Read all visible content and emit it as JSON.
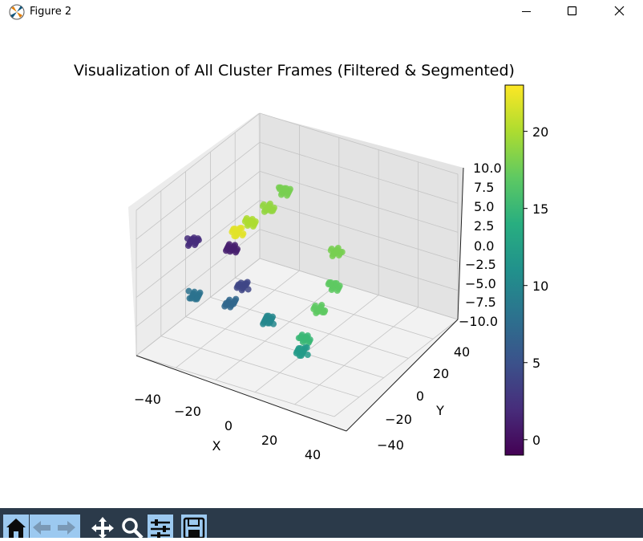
{
  "window": {
    "title": "Figure 2",
    "controls": [
      "minimize",
      "maximize",
      "close"
    ]
  },
  "toolbar": {
    "buttons": [
      "home-icon",
      "back-icon",
      "forward-icon",
      "pan-icon",
      "zoom-icon",
      "configure-subplots-icon",
      "save-icon"
    ],
    "accent": "#9cc9f0",
    "background": "#2b3a4a"
  },
  "chart_data": {
    "type": "scatter",
    "projection": "3d",
    "title": "Visualization of All Cluster Frames (Filtered & Segmented)",
    "xlabel": "X",
    "ylabel": "Y",
    "zlabel": "",
    "x_ticks": [
      "−40",
      "−20",
      "0",
      "20",
      "40"
    ],
    "y_ticks": [
      "−40",
      "−20",
      "0",
      "20",
      "40"
    ],
    "z_ticks": [
      "10.0",
      "7.5",
      "5.0",
      "2.5",
      "0.0",
      "−2.5",
      "−5.0",
      "−7.5",
      "−10.0"
    ],
    "xlim": [
      -50,
      50
    ],
    "ylim": [
      -50,
      50
    ],
    "zlim": [
      -10,
      10
    ],
    "grid": true,
    "colormap": "viridis",
    "colorbar": {
      "ticks": [
        "20",
        "15",
        "10",
        "5",
        "0"
      ],
      "range": [
        -1,
        23
      ]
    },
    "clusters": [
      {
        "x": -38,
        "y": 30,
        "z": 2.5,
        "c": 18
      },
      {
        "x": -25,
        "y": 30,
        "z": 2,
        "c": 19
      },
      {
        "x": -10,
        "y": 30,
        "z": 2,
        "c": 20
      },
      {
        "x": 0,
        "y": 30,
        "z": 2,
        "c": 22
      },
      {
        "x": 8,
        "y": 28,
        "z": 1,
        "c": 1
      },
      {
        "x": 12,
        "y": 20,
        "z": -3,
        "c": 4
      },
      {
        "x": 15,
        "y": 5,
        "z": -6,
        "c": 10
      },
      {
        "x": 22,
        "y": 20,
        "z": -4,
        "c": 7
      },
      {
        "x": 28,
        "y": 35,
        "z": 4,
        "c": 2
      },
      {
        "x": 35,
        "y": 30,
        "z": -2,
        "c": 8
      },
      {
        "x": -40,
        "y": 5,
        "z": -4,
        "c": 18
      },
      {
        "x": -30,
        "y": 0,
        "z": -7,
        "c": 17
      },
      {
        "x": -10,
        "y": -5,
        "z": -7,
        "c": 17
      },
      {
        "x": 10,
        "y": -10,
        "z": -8,
        "c": 15
      },
      {
        "x": 20,
        "y": -15,
        "z": -8,
        "c": 12
      }
    ]
  }
}
